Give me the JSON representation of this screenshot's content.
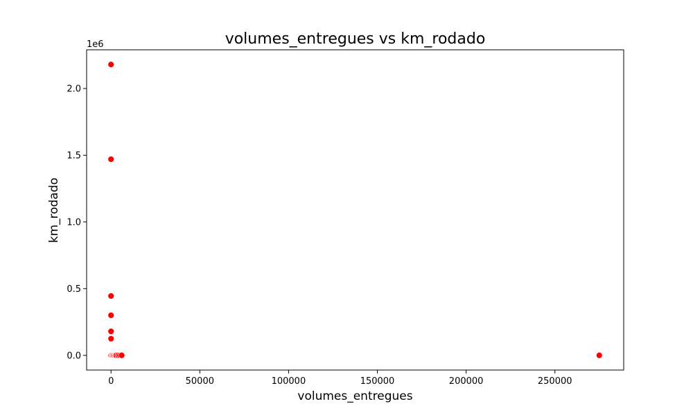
{
  "chart_data": {
    "type": "scatter",
    "title": "volumes_entregues vs km_rodado",
    "xlabel": "volumes_entregues",
    "ylabel": "km_rodado",
    "y_offset_label": "1e6",
    "xlim": [
      -13750,
      288750
    ],
    "ylim": [
      -110000,
      2290000
    ],
    "x_ticks": [
      0,
      50000,
      100000,
      150000,
      200000,
      250000
    ],
    "x_tick_labels": [
      "0",
      "50000",
      "100000",
      "150000",
      "200000",
      "250000"
    ],
    "y_ticks": [
      0,
      500000,
      1000000,
      1500000,
      2000000
    ],
    "y_tick_labels": [
      "0.0",
      "0.5",
      "1.0",
      "1.5",
      "2.0"
    ],
    "grid": false,
    "marker_color": "#ff0000",
    "points": [
      {
        "x": 0,
        "y": 2180000
      },
      {
        "x": 0,
        "y": 1470000
      },
      {
        "x": 0,
        "y": 445000
      },
      {
        "x": 0,
        "y": 300000
      },
      {
        "x": 0,
        "y": 180000
      },
      {
        "x": 0,
        "y": 125000
      },
      {
        "x": 0,
        "y": 0
      },
      {
        "x": 500,
        "y": 0
      },
      {
        "x": 1000,
        "y": 0
      },
      {
        "x": 1500,
        "y": 0
      },
      {
        "x": 2000,
        "y": 0
      },
      {
        "x": 2500,
        "y": 0
      },
      {
        "x": 3000,
        "y": 0
      },
      {
        "x": 4000,
        "y": 0
      },
      {
        "x": 5000,
        "y": 0
      },
      {
        "x": 6000,
        "y": 0
      },
      {
        "x": 275000,
        "y": 0
      }
    ]
  }
}
